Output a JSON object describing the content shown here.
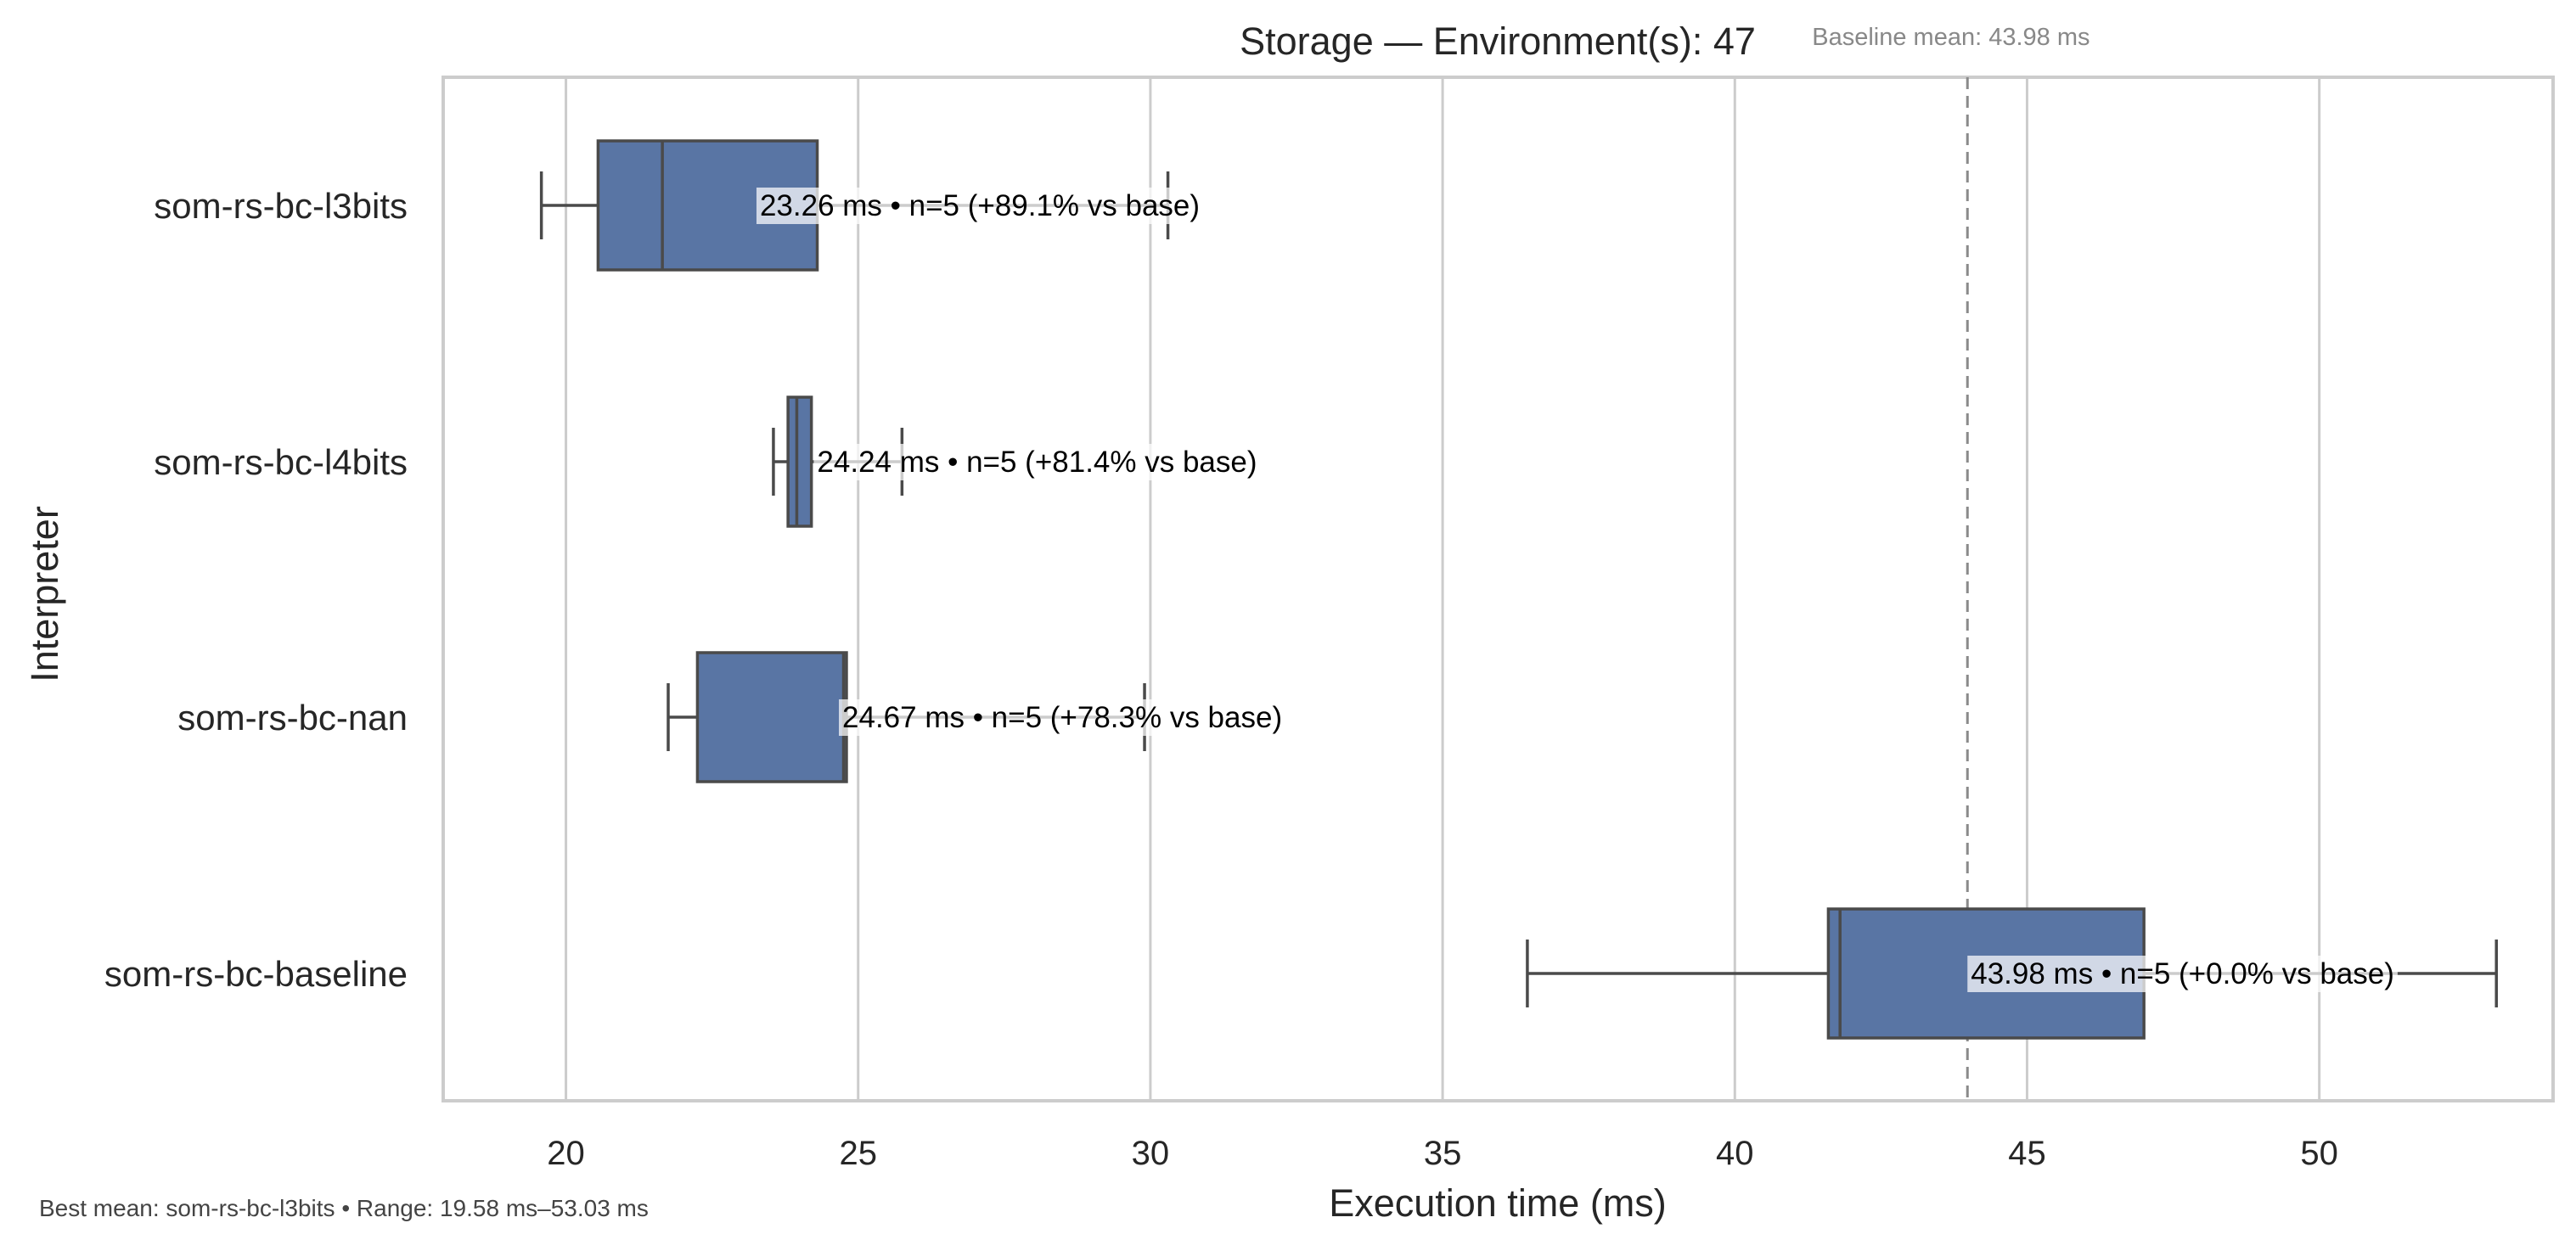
{
  "chart_data": {
    "type": "box",
    "orientation": "horizontal",
    "title": "Storage — Environment(s): 47",
    "xlabel": "Execution time (ms)",
    "ylabel": "Interpreter",
    "xlim": [
      17.9,
      54.0
    ],
    "xticks": [
      20,
      25,
      30,
      35,
      40,
      45,
      50
    ],
    "xtick_labels": [
      "20",
      "25",
      "30",
      "35",
      "40",
      "45",
      "50"
    ],
    "grid": "vertical",
    "box_color": "#5975a4",
    "reference_line": {
      "value": 43.98,
      "label": "Baseline mean: 43.98 ms",
      "style": "dashed"
    },
    "series": [
      {
        "name": "som-rs-bc-l3bits",
        "min": 19.58,
        "q1": 20.55,
        "median": 21.65,
        "q3": 24.3,
        "max": 30.3,
        "annotation": "23.26 ms • n=5 (+89.1% vs base)"
      },
      {
        "name": "som-rs-bc-l4bits",
        "min": 23.55,
        "q1": 23.8,
        "median": 23.95,
        "q3": 24.2,
        "max": 25.75,
        "annotation": "24.24 ms • n=5 (+81.4% vs base)"
      },
      {
        "name": "som-rs-bc-nan",
        "min": 21.75,
        "q1": 22.25,
        "median": 24.75,
        "q3": 24.8,
        "max": 29.9,
        "annotation": "24.67 ms • n=5 (+78.3% vs base)"
      },
      {
        "name": "som-rs-bc-baseline",
        "min": 36.45,
        "q1": 41.6,
        "median": 41.8,
        "q3": 47.0,
        "max": 53.03,
        "annotation": "43.98 ms • n=5 (+0.0% vs base)"
      }
    ]
  },
  "footnote": "Best mean: som-rs-bc-l3bits • Range: 19.58 ms–53.03 ms"
}
